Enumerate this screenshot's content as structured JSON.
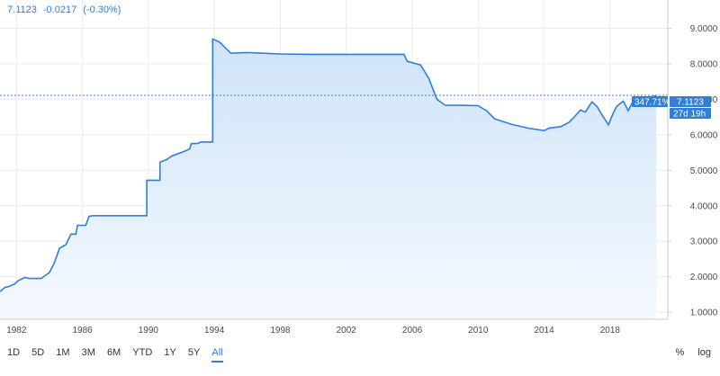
{
  "legend": {
    "value": "7.1123",
    "change": "-0.0217",
    "change_pct": "(-0.30%)"
  },
  "range_buttons": [
    "1D",
    "5D",
    "1M",
    "3M",
    "6M",
    "YTD",
    "1Y",
    "5Y",
    "All"
  ],
  "active_range": "All",
  "scale_options": {
    "percent": "%",
    "log": "log"
  },
  "price_badge": {
    "pct": "347.71%",
    "price": "7.1123",
    "countdown": "27d 19h"
  },
  "colors": {
    "line": "#2f7ed8",
    "fill_top": "#cfe3f8",
    "fill_bottom": "#f4f9fe",
    "badge": "#2f7ed8",
    "grid": "#ececec"
  },
  "chart_data": {
    "type": "area",
    "title": "",
    "xlabel": "",
    "ylabel": "",
    "xlim": [
      1981.0,
      2021.5
    ],
    "ylim": [
      0.8,
      9.8
    ],
    "x_ticks": [
      1982,
      1986,
      1990,
      1994,
      1998,
      2002,
      2006,
      2010,
      2014,
      2018
    ],
    "y_ticks": [
      "1.0000",
      "2.0000",
      "3.0000",
      "4.0000",
      "5.0000",
      "6.0000",
      "7.0000",
      "8.0000",
      "9.0000"
    ],
    "current_price": 7.1123,
    "series": [
      {
        "x": [
          1981.0,
          1981.3,
          1981.5,
          1981.9,
          1982.1,
          1982.5,
          1982.8,
          1983.0,
          1983.5,
          1984.0,
          1984.3,
          1984.6,
          1984.8,
          1985.0,
          1985.3,
          1985.6,
          1985.7,
          1986.2,
          1986.4,
          1986.6,
          1986.7,
          1989.9,
          1989.9,
          1990.7,
          1990.7,
          1991.1,
          1991.4,
          1992.1,
          1992.5,
          1992.6,
          1993.0,
          1993.2,
          1993.9,
          1993.9,
          1994.3,
          1995.0,
          1996.0,
          1997.0,
          1998.0,
          2000.0,
          2002.0,
          2004.0,
          2005.5,
          2005.7,
          2006.5,
          2007.0,
          2007.5,
          2008.0,
          2008.3,
          2009.0,
          2010.0,
          2010.5,
          2011.0,
          2012.0,
          2013.0,
          2014.0,
          2014.3,
          2015.0,
          2015.5,
          2015.8,
          2016.2,
          2016.5,
          2016.9,
          2017.2,
          2017.6,
          2017.9,
          2018.2,
          2018.4,
          2018.8,
          2019.1,
          2019.5,
          2019.7,
          2020.0,
          2020.4,
          2020.8
        ],
        "y": [
          1.58,
          1.7,
          1.72,
          1.8,
          1.89,
          1.98,
          1.95,
          1.95,
          1.95,
          2.12,
          2.4,
          2.8,
          2.85,
          2.91,
          3.2,
          3.2,
          3.45,
          3.45,
          3.7,
          3.72,
          3.72,
          3.72,
          4.72,
          4.72,
          5.23,
          5.3,
          5.4,
          5.52,
          5.6,
          5.75,
          5.76,
          5.8,
          5.8,
          8.7,
          8.62,
          8.3,
          8.32,
          8.3,
          8.28,
          8.27,
          8.27,
          8.27,
          8.27,
          8.07,
          7.97,
          7.6,
          7.0,
          6.83,
          6.83,
          6.83,
          6.82,
          6.68,
          6.45,
          6.3,
          6.19,
          6.12,
          6.19,
          6.23,
          6.35,
          6.49,
          6.7,
          6.64,
          6.93,
          6.8,
          6.5,
          6.28,
          6.62,
          6.8,
          6.95,
          6.68,
          7.05,
          6.9,
          7.0,
          7.04,
          7.11
        ]
      }
    ]
  }
}
